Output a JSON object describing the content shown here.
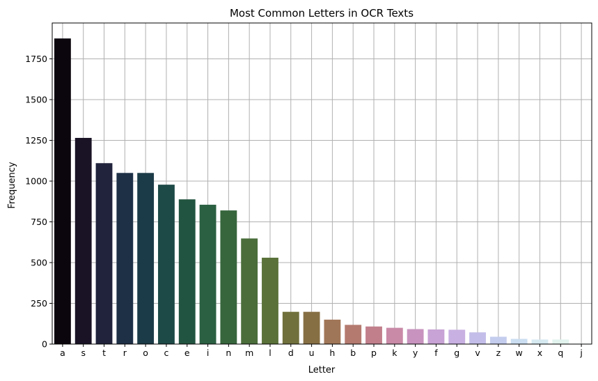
{
  "chart_data": {
    "type": "bar",
    "title": "Most Common Letters in OCR Texts",
    "xlabel": "Letter",
    "ylabel": "Frequency",
    "ylim": [
      0,
      1970
    ],
    "yticks": [
      0,
      250,
      500,
      750,
      1000,
      1250,
      1500,
      1750
    ],
    "grid": true,
    "categories": [
      "a",
      "s",
      "t",
      "r",
      "o",
      "c",
      "e",
      "i",
      "n",
      "m",
      "l",
      "d",
      "u",
      "h",
      "b",
      "p",
      "k",
      "y",
      "f",
      "g",
      "v",
      "z",
      "w",
      "x",
      "q",
      "j"
    ],
    "values": [
      1875,
      1265,
      1110,
      1050,
      1050,
      978,
      888,
      855,
      820,
      648,
      530,
      198,
      198,
      150,
      118,
      108,
      100,
      92,
      90,
      88,
      72,
      45,
      32,
      28,
      28,
      3
    ],
    "colors": [
      "#0b060d",
      "#1a1326",
      "#21233d",
      "#1e3046",
      "#1c3b48",
      "#1d4a47",
      "#225541",
      "#2b6042",
      "#37663c",
      "#4a6d3a",
      "#5a7139",
      "#70703c",
      "#876f44",
      "#a07658",
      "#b47a6f",
      "#c17f8b",
      "#c98aa7",
      "#c894bf",
      "#c8a3d5",
      "#c8b1e2",
      "#c3bee9",
      "#c5cdee",
      "#cbdef1",
      "#d6e9f1",
      "#e2f3ee",
      "#f0faf6"
    ]
  }
}
